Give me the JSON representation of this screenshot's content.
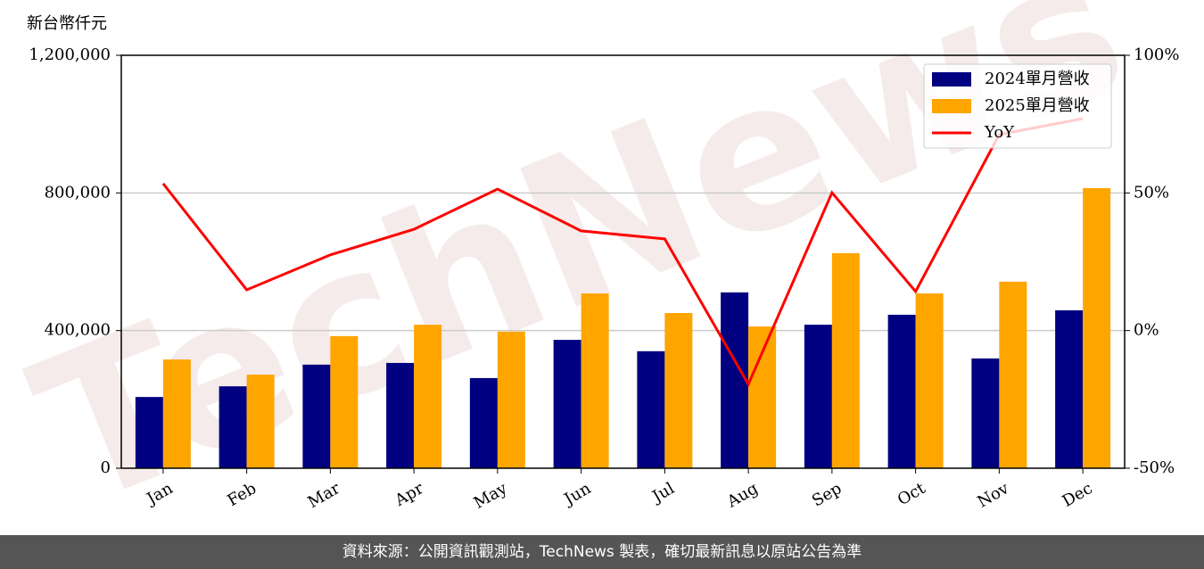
{
  "chart_data": {
    "type": "bar_line",
    "y_label": "新台幣仟元",
    "watermark": "TechNews",
    "categories": [
      "Jan",
      "Feb",
      "Mar",
      "Apr",
      "May",
      "Jun",
      "Jul",
      "Aug",
      "Sep",
      "Oct",
      "Nov",
      "Dec"
    ],
    "series": [
      {
        "name": "2024單月營收",
        "color": "#000080",
        "type": "bar",
        "values": [
          207000,
          238000,
          301000,
          306000,
          262000,
          373000,
          340000,
          511000,
          417000,
          446000,
          319000,
          459000
        ]
      },
      {
        "name": "2025單月營收",
        "color": "#ffa500",
        "type": "bar",
        "values": [
          316000,
          272000,
          384000,
          417000,
          397000,
          508000,
          451000,
          412000,
          625000,
          508000,
          542000,
          814000
        ]
      },
      {
        "name": "YoY",
        "color": "#ff0000",
        "type": "line",
        "axis": "y2",
        "values": [
          53.4,
          14.8,
          27.5,
          36.8,
          51.4,
          36.2,
          33.3,
          -19.5,
          50.1,
          14.2,
          71.2,
          77.0
        ]
      }
    ],
    "ylim": [
      0,
      1200000
    ],
    "yticks": [
      0,
      {
        "value": 400000,
        "label": "400,000"
      },
      {
        "value": 800000,
        "label": "800,000"
      },
      {
        "value": 1200000,
        "label": "1,200,000"
      }
    ],
    "y2lim": [
      -50,
      100
    ],
    "y2ticks": [
      {
        "value": -50,
        "label": "-50%"
      },
      {
        "value": 0,
        "label": "0%"
      },
      {
        "value": 50,
        "label": "50%"
      },
      {
        "value": 100,
        "label": "100%"
      }
    ],
    "grid": true,
    "legend": "upper right"
  },
  "footer": "資料來源：公開資訊觀測站，TechNews 製表，確切最新訊息以原站公告為準"
}
